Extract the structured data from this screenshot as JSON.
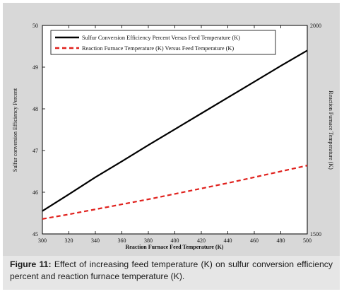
{
  "chart_data": {
    "type": "line",
    "x": [
      300,
      320,
      340,
      360,
      380,
      400,
      420,
      440,
      460,
      480,
      500
    ],
    "xlim": [
      300,
      500
    ],
    "xticks": [
      "300",
      "320",
      "340",
      "360",
      "380",
      "400",
      "420",
      "440",
      "460",
      "480",
      "500"
    ],
    "xlabel": "Reaction Furnace Feed Temperature (K)",
    "ylabel_left": "Sulfur conversion Efficiency Percent",
    "ylim_left": [
      45,
      50
    ],
    "yticks_left": [
      "45",
      "46",
      "47",
      "48",
      "49",
      "50"
    ],
    "ylabel_right": "Reaction Furnace Temperature (K)",
    "ylim_right": [
      1500,
      2000
    ],
    "yticks_right": [
      "1500",
      "2000"
    ],
    "grid": false,
    "legend_position": "top",
    "series": [
      {
        "name": "Sulfur Conversion Efficiency Percent Versus Feed Temperature (K)",
        "axis": "left",
        "style": "solid",
        "color": "#000000",
        "values": [
          45.55,
          45.95,
          46.36,
          46.74,
          47.13,
          47.51,
          47.89,
          48.27,
          48.65,
          49.03,
          49.4
        ]
      },
      {
        "name": "Reaction Furnace Temperature (K) Versus Feed Temperature (K)",
        "axis": "right",
        "style": "dashed",
        "color": "#e0201c",
        "values": [
          1536,
          1547,
          1559,
          1571,
          1583,
          1596,
          1609,
          1622,
          1636,
          1650,
          1664
        ]
      }
    ]
  },
  "caption": {
    "label": "Figure 11:",
    "text": " Effect of increasing feed temperature (K) on sulfur conversion efficiency percent and reaction furnace temperature (K)."
  }
}
